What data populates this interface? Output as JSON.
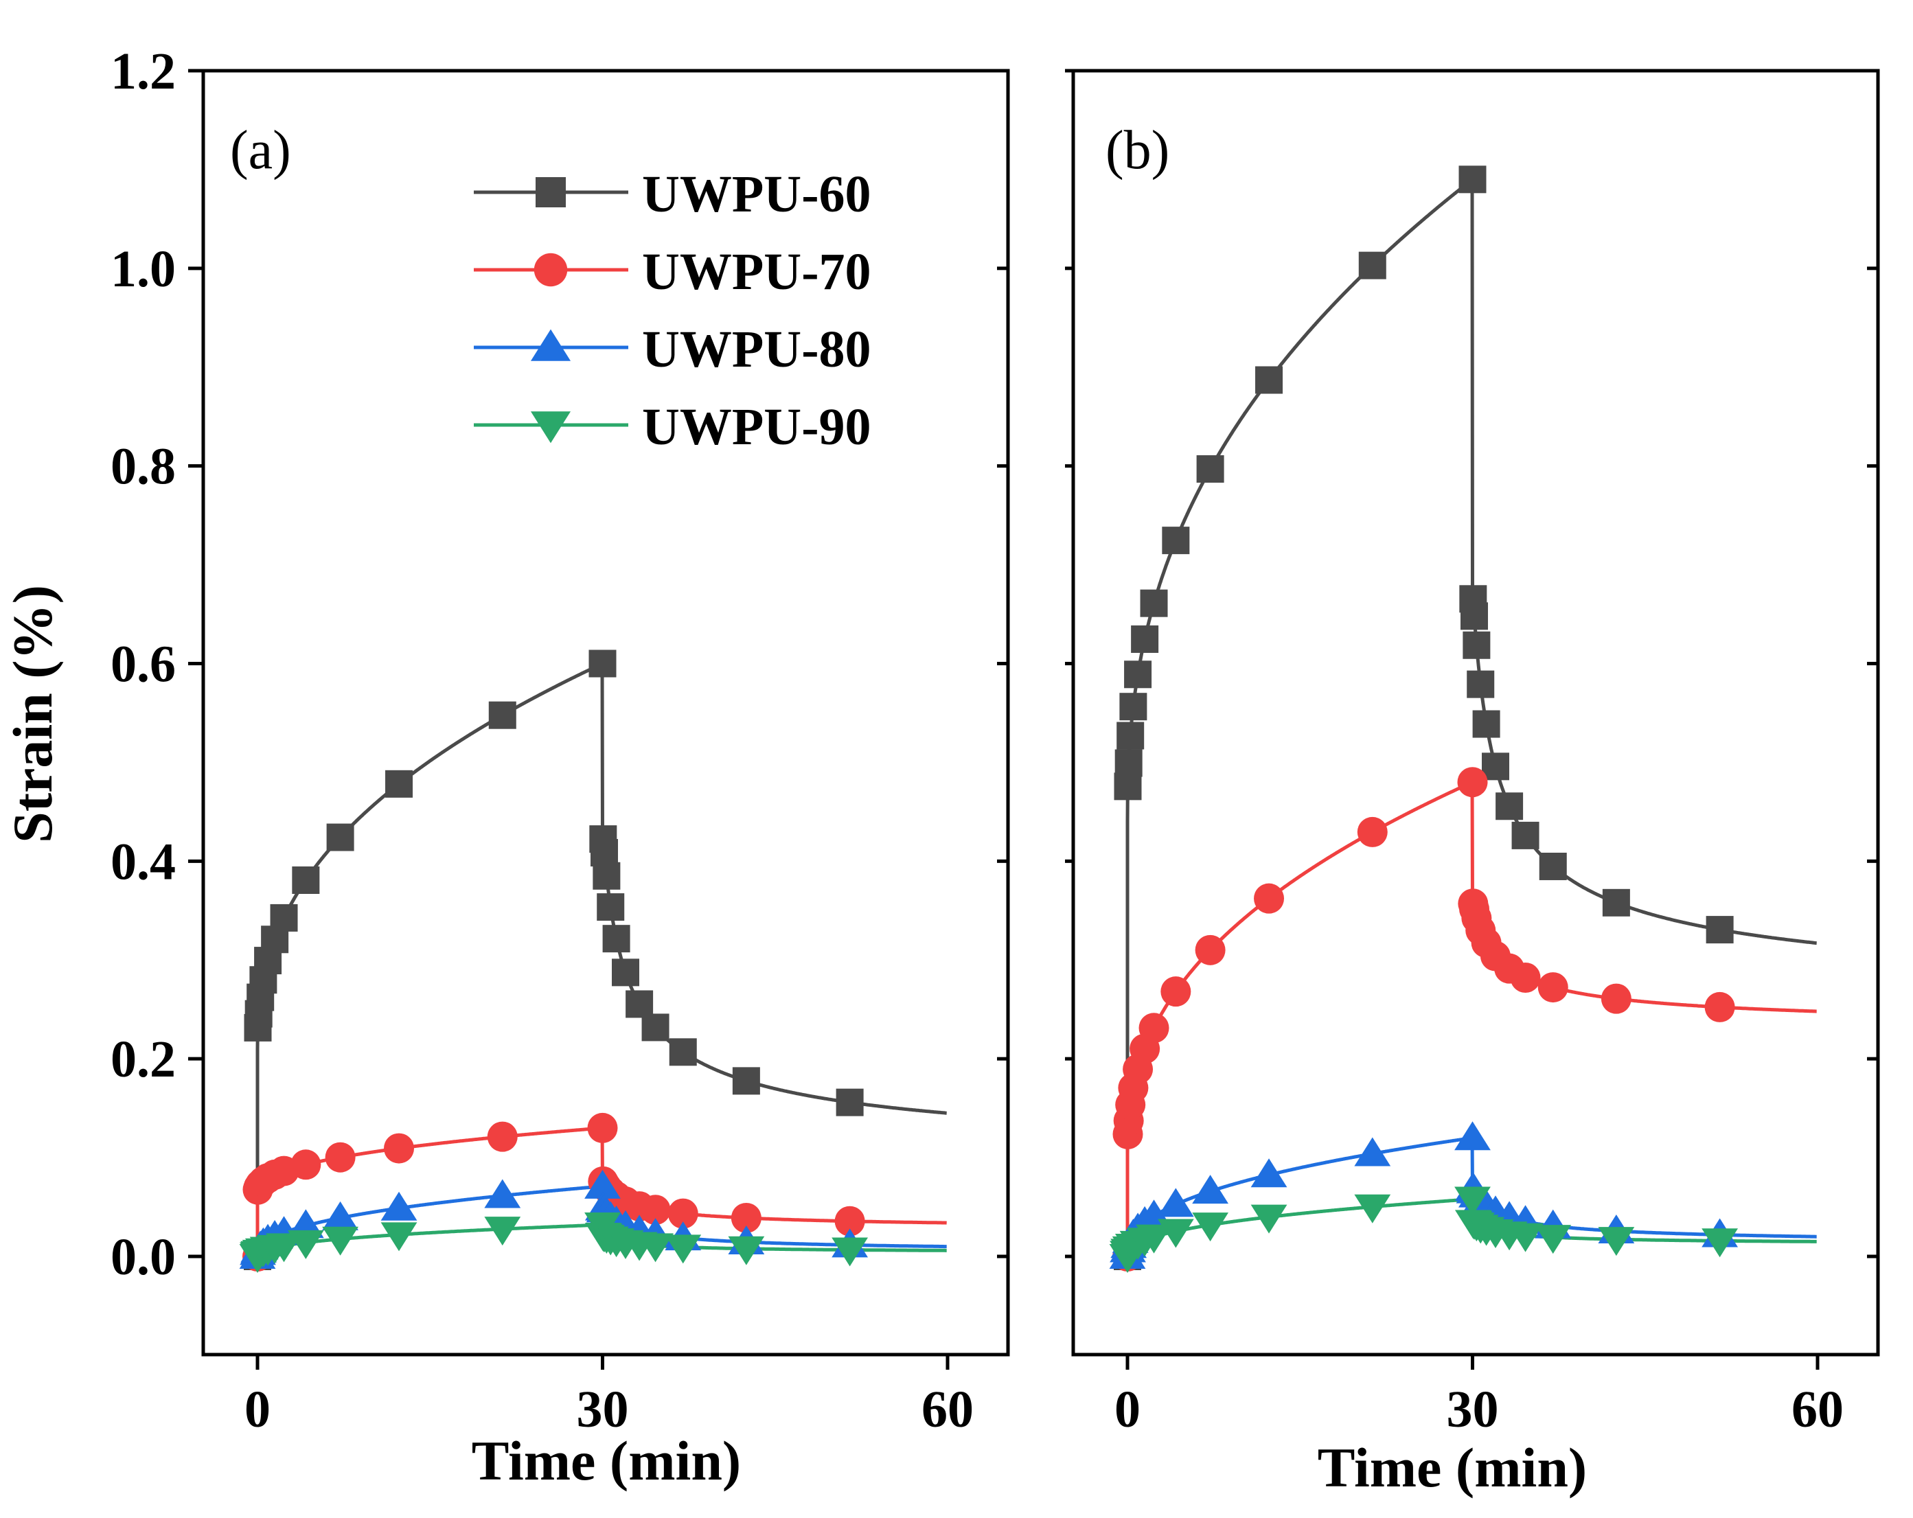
{
  "chart_data": [
    {
      "type": "line",
      "panel_label": "(a)",
      "xlabel": "Time (min)",
      "ylabel": "Strain (%)",
      "xlim": [
        -2,
        65
      ],
      "ylim": [
        -0.1,
        1.2
      ],
      "xticks": [
        0,
        30,
        60
      ],
      "yticks": [
        0.0,
        0.2,
        0.4,
        0.6,
        0.8,
        1.0,
        1.2
      ],
      "xtick_labels": [
        "0",
        "30",
        "60"
      ],
      "ytick_labels": [
        "0.0",
        "0.2",
        "0.4",
        "0.6",
        "0.8",
        "1.0",
        "1.2"
      ],
      "legend_position": "top-right",
      "series": [
        {
          "name": "UWPU-60",
          "color": "#4a4a4a",
          "marker": "square",
          "creep_end": 0.6,
          "recovery_start": 0.43,
          "final": 0.145,
          "instant": 0.21
        },
        {
          "name": "UWPU-70",
          "color": "#f04040",
          "marker": "circle",
          "creep_end": 0.13,
          "recovery_start": 0.077,
          "final": 0.034,
          "instant": 0.064
        },
        {
          "name": "UWPU-80",
          "color": "#1f6fe0",
          "marker": "triangle-up",
          "creep_end": 0.071,
          "recovery_start": 0.05,
          "final": 0.01,
          "instant": 0.0
        },
        {
          "name": "UWPU-90",
          "color": "#2aa86a",
          "marker": "triangle-down",
          "creep_end": 0.032,
          "recovery_start": 0.022,
          "final": 0.006,
          "instant": 0.0
        }
      ]
    },
    {
      "type": "line",
      "panel_label": "(b)",
      "xlabel": "Time (min)",
      "ylabel": "Strain (%)",
      "xlim": [
        -2,
        65
      ],
      "ylim": [
        -0.1,
        1.2
      ],
      "xticks": [
        0,
        30,
        60
      ],
      "yticks": [
        0.0,
        0.2,
        0.4,
        0.6,
        0.8,
        1.0,
        1.2
      ],
      "xtick_labels": [
        "0",
        "30",
        "60"
      ],
      "series": [
        {
          "name": "UWPU-60",
          "color": "#4a4a4a",
          "marker": "square",
          "creep_end": 1.09,
          "recovery_start": 0.675,
          "final": 0.317,
          "instant": 0.44
        },
        {
          "name": "UWPU-70",
          "color": "#f04040",
          "marker": "circle",
          "creep_end": 0.48,
          "recovery_start": 0.36,
          "final": 0.248,
          "instant": 0.103
        },
        {
          "name": "UWPU-80",
          "color": "#1f6fe0",
          "marker": "triangle-up",
          "creep_end": 0.12,
          "recovery_start": 0.07,
          "final": 0.02,
          "instant": 0.0
        },
        {
          "name": "UWPU-90",
          "color": "#2aa86a",
          "marker": "triangle-down",
          "creep_end": 0.058,
          "recovery_start": 0.035,
          "final": 0.015,
          "instant": 0.0
        }
      ]
    }
  ]
}
